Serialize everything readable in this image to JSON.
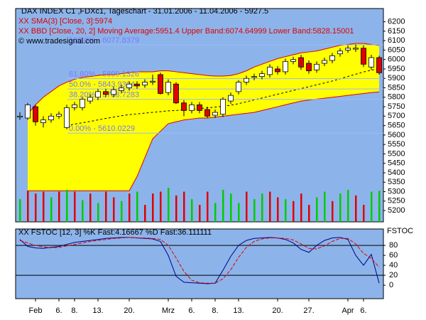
{
  "chart_data": {
    "type": "candlestick",
    "title": "DAX INDEX C1 ,FDXc1, Tageschart - 31.01.2006 - 11.04.2006 - 5927.5",
    "sma_label": "XX SMA(3) [Close, 3]:5974",
    "bbd_label": "XX BBD [Close, 20, 2] Moving Average:5951.4 Upper Band:6074.64999 Lower Band:5828.15001",
    "copyright": "© www.tradesignal.com",
    "categories": [
      null,
      null,
      "Feb",
      null,
      null,
      "6.",
      null,
      "8.",
      null,
      null,
      "13.",
      null,
      null,
      null,
      "20.",
      null,
      null,
      null,
      null,
      "Mrz",
      null,
      null,
      "6.",
      null,
      null,
      "8.",
      null,
      null,
      "13.",
      null,
      null,
      null,
      null,
      "20.",
      null,
      null,
      null,
      "27.",
      null,
      null,
      null,
      null,
      "Apr",
      null,
      "6.",
      null,
      null
    ],
    "open": [
      5695,
      5690,
      5750,
      5665,
      5680,
      5700,
      5640,
      5745,
      5745,
      5780,
      5800,
      5830,
      5815,
      5835,
      5850,
      5870,
      5865,
      5880,
      5920,
      5825,
      5870,
      5770,
      5730,
      5760,
      5735,
      5705,
      5710,
      5780,
      5830,
      5880,
      5905,
      5910,
      5920,
      5950,
      5935,
      5990,
      6010,
      5980,
      5945,
      5980,
      5995,
      6030,
      6050,
      6055,
      6060,
      5960,
      6010
    ],
    "high": [
      5720,
      5770,
      5760,
      5700,
      5715,
      5725,
      5760,
      5775,
      5800,
      5815,
      5845,
      5845,
      5855,
      5865,
      5885,
      5885,
      5895,
      5920,
      5930,
      5895,
      5880,
      5785,
      5775,
      5775,
      5750,
      5735,
      5800,
      5825,
      5890,
      5915,
      5925,
      5940,
      5975,
      5965,
      6005,
      6015,
      6025,
      5995,
      5990,
      6010,
      6035,
      6060,
      6075,
      6080,
      6075,
      6025,
      6020
    ],
    "low": [
      5680,
      5680,
      5650,
      5640,
      5665,
      5685,
      5630,
      5730,
      5730,
      5765,
      5785,
      5800,
      5800,
      5820,
      5835,
      5845,
      5850,
      5865,
      5815,
      5810,
      5765,
      5700,
      5715,
      5715,
      5690,
      5690,
      5695,
      5765,
      5815,
      5865,
      5890,
      5895,
      5905,
      5920,
      5920,
      5975,
      5945,
      5925,
      5930,
      5965,
      5980,
      6015,
      6035,
      6040,
      5960,
      5945,
      5920
    ],
    "close": [
      5700,
      5760,
      5670,
      5680,
      5700,
      5710,
      5745,
      5760,
      5790,
      5800,
      5830,
      5815,
      5840,
      5850,
      5870,
      5860,
      5880,
      5885,
      5820,
      5880,
      5770,
      5730,
      5760,
      5730,
      5700,
      5720,
      5790,
      5810,
      5880,
      5900,
      5910,
      5925,
      5960,
      5935,
      5990,
      6000,
      5960,
      5940,
      5975,
      5995,
      6020,
      6045,
      6060,
      6060,
      5975,
      6010,
      5930
    ],
    "upper_band": [
      null,
      5710,
      5760,
      5800,
      5830,
      5860,
      5880,
      5895,
      5905,
      5910,
      5915,
      5920,
      5920,
      5925,
      5930,
      5935,
      5935,
      5935,
      5940,
      5940,
      5935,
      5930,
      5925,
      5920,
      5915,
      5912,
      5912,
      5915,
      5925,
      5940,
      5960,
      5975,
      5990,
      6005,
      6015,
      6025,
      6035,
      6040,
      6045,
      6055,
      6065,
      6075,
      6080,
      6085,
      6085,
      6080,
      6074.64999
    ],
    "lower_band": [
      null,
      5305,
      5305,
      5305,
      5305,
      5305,
      5305,
      5305,
      5305,
      5305,
      5305,
      5305,
      5305,
      5305,
      5305,
      5380,
      5480,
      5580,
      5620,
      5660,
      5670,
      5680,
      5685,
      5690,
      5690,
      5695,
      5700,
      5705,
      5710,
      5715,
      5720,
      5730,
      5740,
      5750,
      5760,
      5770,
      5780,
      5785,
      5790,
      5795,
      5800,
      5805,
      5810,
      5815,
      5820,
      5825,
      5828.15001
    ],
    "moving_average": [
      null,
      null,
      null,
      null,
      null,
      null,
      5650,
      5658,
      5665,
      5672,
      5680,
      5688,
      5695,
      5702,
      5708,
      5712,
      5716,
      5720,
      5724,
      5728,
      5730,
      5733,
      5736,
      5740,
      5744,
      5748,
      5752,
      5758,
      5766,
      5776,
      5786,
      5796,
      5806,
      5816,
      5826,
      5836,
      5846,
      5856,
      5866,
      5876,
      5886,
      5898,
      5910,
      5922,
      5934,
      5944,
      5951.4
    ],
    "volume": [
      5260,
      5305,
      5290,
      5300,
      5270,
      5300,
      5310,
      5300,
      5255,
      5290,
      5240,
      5300,
      5270,
      5250,
      5290,
      5300,
      5230,
      5290,
      5300,
      5320,
      5280,
      5300,
      5260,
      5230,
      5300,
      5240,
      5310,
      5290,
      5240,
      5300,
      5260,
      5290,
      5300,
      5270,
      5260,
      5250,
      5290,
      5230,
      5270,
      5300,
      5250,
      5290,
      5310,
      5280,
      5230,
      5300,
      5305
    ],
    "volume_colors": [
      "#00cc00",
      "#e00000",
      "#e00000",
      "#e00000",
      "#00cc00",
      "#e00000",
      "#00cc00",
      "#e00000",
      "#00cc00",
      "#e00000",
      "#00cc00",
      "#e00000",
      "#e00000",
      "#00cc00",
      "#e00000",
      "#00cc00",
      "#e00000",
      "#e00000",
      "#e00000",
      "#00cc00",
      "#e00000",
      "#e00000",
      "#00cc00",
      "#e00000",
      "#e00000",
      "#00cc00",
      "#00cc00",
      "#00cc00",
      "#00cc00",
      "#e00000",
      "#00cc00",
      "#00cc00",
      "#e00000",
      "#e00000",
      "#00cc00",
      "#e00000",
      "#e00000",
      "#e00000",
      "#00cc00",
      "#00cc00",
      "#e00000",
      "#00cc00",
      "#00cc00",
      "#e00000",
      "#e00000",
      "#00cc00",
      "#00cc00"
    ],
    "fib_levels": [
      {
        "value": 6077.8379,
        "label": "100.0% - 6077.8379"
      },
      {
        "value": 5899.1326,
        "label": "61.80% - 5899.1326"
      },
      {
        "value": 5843.9304,
        "label": "50.0% - 5843.9304"
      },
      {
        "value": 5788.7283,
        "label": "38.20% - 5788.7283"
      },
      {
        "value": 5610.0229,
        "label": "0.00% - 5610.0229"
      }
    ],
    "ylim": [
      5140,
      6270
    ],
    "yticks": [
      5200,
      5250,
      5300,
      5350,
      5400,
      5450,
      5500,
      5550,
      5600,
      5650,
      5700,
      5750,
      5800,
      5850,
      5900,
      5950,
      6000,
      6050,
      6100,
      6150,
      6200
    ],
    "up_color": "#ffffff",
    "down_color": "#e00000",
    "band_color": "#ffff00",
    "band_edge": "#e00000",
    "background": "#8cb4ea",
    "stochastic": {
      "label": "XX FSTOC [12, 3] %K Fast:4.16667 %D Fast:36.111111",
      "axis_label": "FSTOC",
      "ylim": [
        -27,
        113
      ],
      "yticks": [
        0,
        20,
        40,
        60,
        80
      ],
      "levels": [
        20,
        80
      ],
      "series": [
        {
          "name": "%K",
          "color": "#000080",
          "values": [
            92,
            78,
            75,
            74,
            76,
            78,
            82,
            86,
            88,
            90,
            92,
            94,
            95,
            96,
            96,
            95,
            94,
            93,
            88,
            60,
            18,
            6,
            5,
            4,
            3,
            4,
            30,
            58,
            80,
            90,
            94,
            95,
            96,
            95,
            92,
            85,
            72,
            66,
            80,
            90,
            95,
            96,
            92,
            60,
            40,
            62,
            4.16667
          ]
        },
        {
          "name": "%D",
          "color": "#e00000",
          "values": [
            90,
            85,
            80,
            77,
            75,
            76,
            79,
            82,
            85,
            88,
            90,
            92,
            94,
            95,
            96,
            95,
            95,
            94,
            92,
            80,
            55,
            28,
            10,
            5,
            4,
            4,
            13,
            31,
            56,
            76,
            88,
            93,
            95,
            95,
            94,
            91,
            83,
            74,
            73,
            79,
            88,
            94,
            94,
            83,
            64,
            54,
            36.111111
          ]
        }
      ]
    }
  }
}
